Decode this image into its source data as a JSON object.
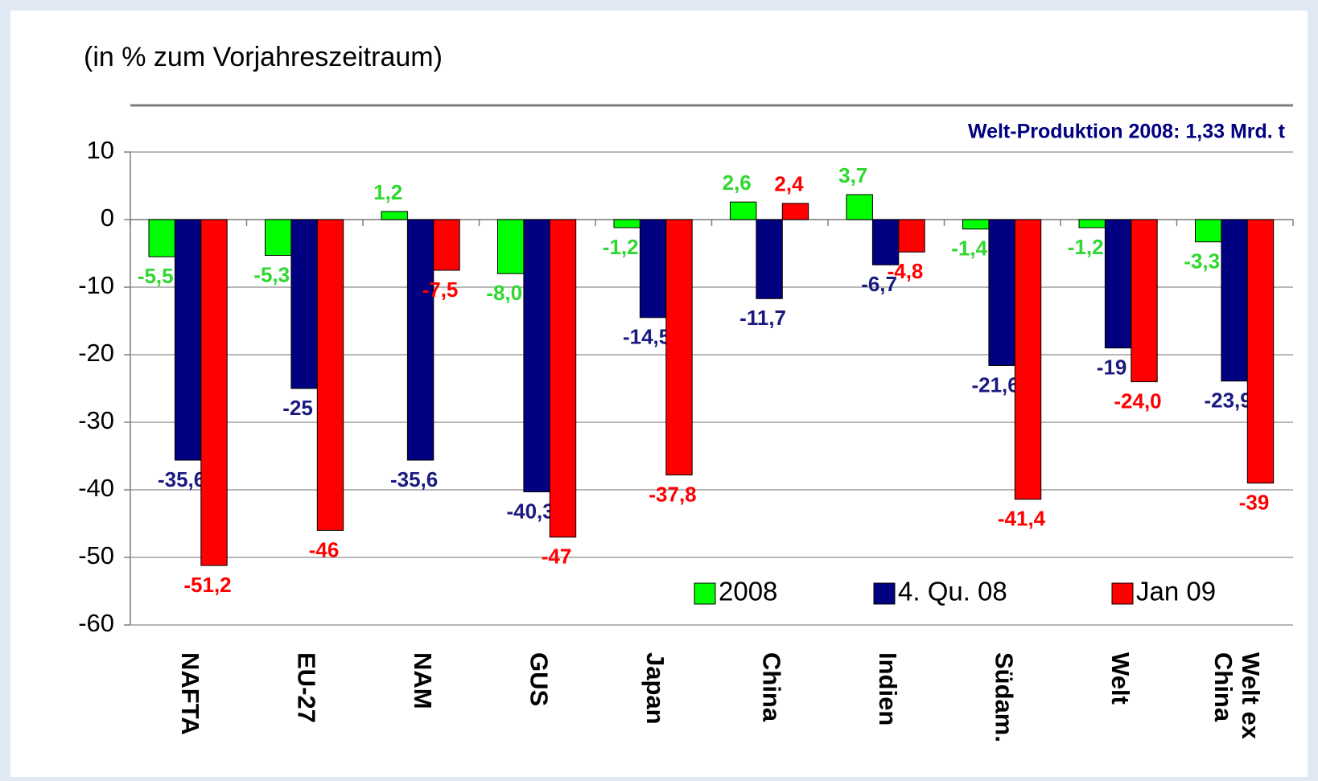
{
  "chart_data": {
    "type": "bar",
    "subtitle": "(in % zum Vorjahreszeitraum)",
    "annotation": "Welt-Produktion 2008: 1,33 Mrd. t",
    "categories": [
      "NAFTA",
      "EU-27",
      "NAM",
      "GUS",
      "Japan",
      "China",
      "Indien",
      "Südam.",
      "Welt",
      "Welt ex China"
    ],
    "series": [
      {
        "name": "2008",
        "color": "#00ff00",
        "label_color": "#2fd82f",
        "values": [
          -5.5,
          -5.3,
          1.2,
          -8.0,
          -1.2,
          2.6,
          3.7,
          -1.4,
          -1.2,
          -3.3
        ],
        "value_labels": [
          "-5,5",
          "-5,3",
          "1,2",
          "-8,0",
          "-1,2",
          "2,6",
          "3,7",
          "-1,4",
          "-1,2",
          "-3,3"
        ]
      },
      {
        "name": "4. Qu. 08",
        "color": "#000080",
        "label_color": "#1a1a80",
        "values": [
          -35.6,
          -25,
          -35.6,
          -40.3,
          -14.5,
          -11.7,
          -6.7,
          -21.6,
          -19,
          -23.9
        ],
        "value_labels": [
          "-35,6",
          "-25",
          "-35,6",
          "-40,3",
          "-14,5",
          "-11,7",
          "-6,7",
          "-21,6",
          "-19",
          "-23,9"
        ]
      },
      {
        "name": "Jan 09",
        "color": "#ff0000",
        "label_color": "#ff0000",
        "values": [
          -51.2,
          -46,
          -7.5,
          -47,
          -37.8,
          2.4,
          -4.8,
          -41.4,
          -24.0,
          -39
        ],
        "value_labels": [
          "-51,2",
          "-46",
          "-7,5",
          "-47",
          "-37,8",
          "2,4",
          "-4,8",
          "-41,4",
          "-24,0",
          "-39"
        ]
      }
    ],
    "ylim": [
      -60,
      10
    ],
    "yticks": [
      10,
      0,
      -10,
      -20,
      -30,
      -40,
      -50,
      -60
    ],
    "grid": true,
    "legend": "lower right"
  }
}
